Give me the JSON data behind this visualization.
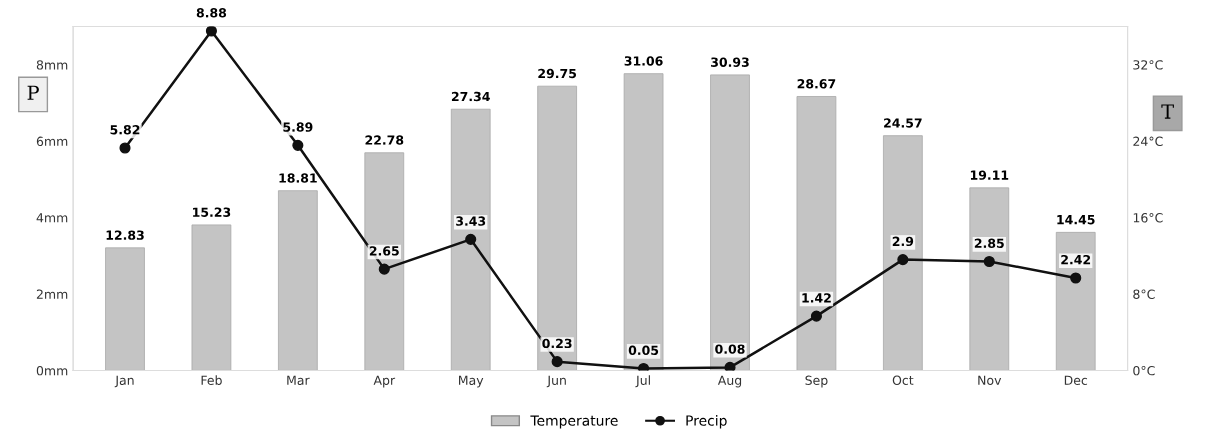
{
  "chart_data": {
    "type": "bar",
    "categories": [
      "Jan",
      "Feb",
      "Mar",
      "Apr",
      "May",
      "Jun",
      "Jul",
      "Aug",
      "Sep",
      "Oct",
      "Nov",
      "Dec"
    ],
    "series": [
      {
        "name": "Temperature",
        "axis": "y2",
        "color": "#c4c4c4",
        "values": [
          12.83,
          15.23,
          18.81,
          22.78,
          27.34,
          29.75,
          31.06,
          30.93,
          28.67,
          24.57,
          19.11,
          14.45
        ]
      },
      {
        "name": "Precip",
        "type": "line",
        "axis": "y",
        "color": "#111111",
        "values": [
          5.82,
          8.88,
          5.89,
          2.65,
          3.43,
          0.23,
          0.05,
          0.08,
          1.42,
          2.9,
          2.85,
          2.42
        ]
      }
    ],
    "ylabel": "P",
    "y2label": "T",
    "ylim": [
      0,
      9
    ],
    "yticks": [
      {
        "value": 0,
        "label": "0mm"
      },
      {
        "value": 2,
        "label": "2mm"
      },
      {
        "value": 4,
        "label": "4mm"
      },
      {
        "value": 6,
        "label": "6mm"
      },
      {
        "value": 8,
        "label": "8mm"
      }
    ],
    "y2lim": [
      0,
      36
    ],
    "y2ticks": [
      {
        "value": 0,
        "label": "0°C"
      },
      {
        "value": 8,
        "label": "8°C"
      },
      {
        "value": 16,
        "label": "16°C"
      },
      {
        "value": 24,
        "label": "24°C"
      },
      {
        "value": 32,
        "label": "32°C"
      }
    ],
    "data_labels": true,
    "legend": "bottom",
    "grid": false,
    "marker": "circle",
    "line_style": "solid"
  }
}
